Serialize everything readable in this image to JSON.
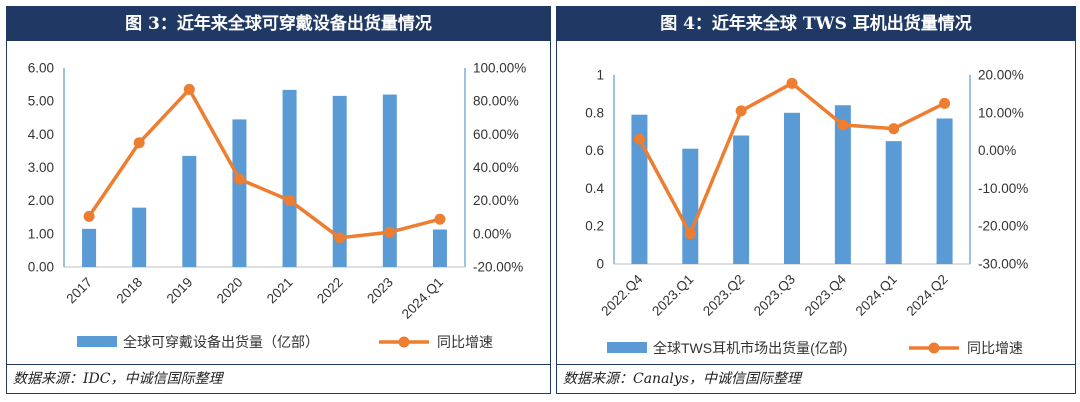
{
  "colors": {
    "header": "#1f3864",
    "bar": "#5b9bd5",
    "line": "#ed7d31",
    "axis": "#5b9bd5",
    "tick": "#333333"
  },
  "left": {
    "title": "图 3：近年来全球可穿戴设备出货量情况",
    "source": "数据来源：IDC，中诚信国际整理",
    "chart_data": {
      "type": "bar",
      "categories": [
        "2017",
        "2018",
        "2019",
        "2020",
        "2021",
        "2022",
        "2023",
        "2024.Q1"
      ],
      "series": [
        {
          "name": "全球可穿戴设备出货量（亿部）",
          "type": "bar",
          "axis": "left",
          "values": [
            1.15,
            1.79,
            3.35,
            4.45,
            5.34,
            5.16,
            5.2,
            1.13
          ]
        },
        {
          "name": "同比增速",
          "type": "line",
          "axis": "right",
          "unit": "%",
          "values": [
            10.5,
            54.9,
            87.1,
            33.0,
            20.2,
            -2.4,
            1.0,
            8.8
          ]
        }
      ],
      "y_left": {
        "min": 0,
        "max": 6,
        "step": 1,
        "ticks": [
          "0.00",
          "1.00",
          "2.00",
          "3.00",
          "4.00",
          "5.00",
          "6.00"
        ]
      },
      "y_right": {
        "min": -20,
        "max": 100,
        "step": 20,
        "ticks": [
          "-20.00%",
          "0.00%",
          "20.00%",
          "40.00%",
          "60.00%",
          "80.00%",
          "100.00%"
        ]
      },
      "legend_position": "bottom",
      "grid": false
    }
  },
  "right": {
    "title": "图 4：近年来全球 TWS 耳机出货量情况",
    "source": "数据来源：Canalys，中诚信国际整理",
    "chart_data": {
      "type": "bar",
      "categories": [
        "2022.Q4",
        "2023.Q1",
        "2023.Q2",
        "2023.Q3",
        "2023.Q4",
        "2024.Q1",
        "2024.Q2"
      ],
      "series": [
        {
          "name": "全球TWS耳机市场出货量(亿部)",
          "type": "bar",
          "axis": "left",
          "values": [
            0.79,
            0.61,
            0.68,
            0.8,
            0.84,
            0.65,
            0.77
          ]
        },
        {
          "name": "同比增速",
          "type": "line",
          "axis": "right",
          "unit": "%",
          "values": [
            3.0,
            -22.0,
            10.5,
            17.8,
            6.8,
            5.8,
            12.5
          ]
        }
      ],
      "y_left": {
        "min": 0,
        "max": 1,
        "step": 0.2,
        "ticks": [
          "0",
          "0.2",
          "0.4",
          "0.6",
          "0.8",
          "1"
        ]
      },
      "y_right": {
        "min": -30,
        "max": 20,
        "step": 10,
        "ticks": [
          "-30.00%",
          "-20.00%",
          "-10.00%",
          "0.00%",
          "10.00%",
          "20.00%"
        ]
      },
      "legend_position": "bottom",
      "grid": false
    }
  }
}
